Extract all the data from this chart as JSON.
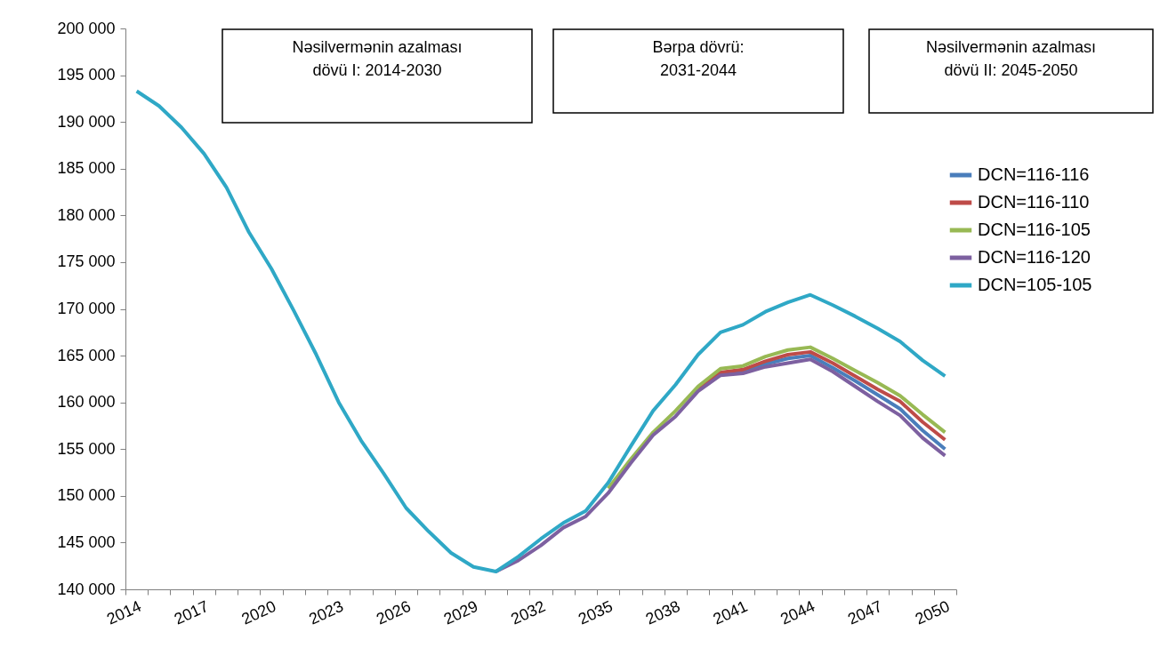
{
  "chart_data": {
    "type": "line",
    "categories": [
      "2014",
      null,
      null,
      "2017",
      null,
      null,
      "2020",
      null,
      null,
      "2023",
      null,
      null,
      "2026",
      null,
      null,
      "2029",
      null,
      null,
      "2032",
      null,
      null,
      "2035",
      null,
      null,
      "2038",
      null,
      null,
      "2041",
      null,
      null,
      "2044",
      null,
      null,
      "2047",
      null,
      null,
      "2050"
    ],
    "series": [
      {
        "name": "DCN=116-116",
        "color": "#4a7ebb",
        "values": [
          null,
          null,
          null,
          null,
          null,
          null,
          null,
          null,
          null,
          null,
          null,
          null,
          null,
          null,
          null,
          null,
          null,
          null,
          null,
          null,
          null,
          null,
          null,
          null,
          null,
          161400,
          163000,
          163300,
          164100,
          164700,
          165000,
          163700,
          162300,
          160800,
          159300,
          157000,
          155000
        ]
      },
      {
        "name": "DCN=116-110",
        "color": "#be4b48",
        "values": [
          null,
          null,
          null,
          null,
          null,
          null,
          null,
          null,
          null,
          null,
          null,
          null,
          null,
          null,
          null,
          null,
          null,
          null,
          null,
          null,
          null,
          null,
          null,
          null,
          null,
          161500,
          163200,
          163500,
          164400,
          165100,
          165400,
          164200,
          162800,
          161400,
          160100,
          157900,
          156000
        ]
      },
      {
        "name": "DCN=116-105",
        "color": "#98b954",
        "values": [
          null,
          null,
          null,
          null,
          null,
          null,
          null,
          null,
          null,
          null,
          null,
          null,
          null,
          null,
          null,
          null,
          null,
          null,
          null,
          null,
          null,
          150800,
          153900,
          156800,
          159100,
          161700,
          163600,
          163900,
          164900,
          165600,
          165900,
          164700,
          163400,
          162100,
          160700,
          158700,
          156800
        ]
      },
      {
        "name": "DCN=116-120",
        "color": "#7d60a0",
        "values": [
          null,
          null,
          null,
          null,
          null,
          null,
          null,
          null,
          null,
          null,
          null,
          null,
          null,
          null,
          null,
          null,
          141900,
          143100,
          144700,
          146600,
          147800,
          150300,
          153500,
          156500,
          158500,
          161200,
          162900,
          163100,
          163800,
          164200,
          164600,
          163300,
          161700,
          160100,
          158600,
          156200,
          154300
        ]
      },
      {
        "name": "DCN=105-105",
        "color": "#2fa8c6",
        "values": [
          193300,
          191700,
          189400,
          186600,
          183000,
          178200,
          174300,
          169800,
          165100,
          160000,
          155900,
          152400,
          148700,
          146200,
          143900,
          142400,
          141900,
          143500,
          145400,
          147100,
          148400,
          151400,
          155300,
          159100,
          161900,
          165100,
          167500,
          168300,
          169700,
          170700,
          171500,
          170400,
          169200,
          167900,
          166500,
          164500,
          162800
        ]
      }
    ],
    "ylim": [
      140000,
      200000
    ],
    "yticks": [
      {
        "value": 140000,
        "label": "140 000"
      },
      {
        "value": 145000,
        "label": "145 000"
      },
      {
        "value": 150000,
        "label": "150 000"
      },
      {
        "value": 155000,
        "label": "155 000"
      },
      {
        "value": 160000,
        "label": "160 000"
      },
      {
        "value": 165000,
        "label": "165 000"
      },
      {
        "value": 170000,
        "label": "170 000"
      },
      {
        "value": 175000,
        "label": "175 000"
      },
      {
        "value": 180000,
        "label": "180 000"
      },
      {
        "value": 185000,
        "label": "185 000"
      },
      {
        "value": 190000,
        "label": "190 000"
      },
      {
        "value": 195000,
        "label": "195 000"
      },
      {
        "value": 200000,
        "label": "200 000"
      }
    ],
    "annotations": [
      "Nəsilvermənin azalması\ndövü I: 2014-2030",
      "Bərpa dövrü:\n2031-2044",
      "Nəsilvermənin azalması\ndövü II: 2045-2050"
    ],
    "grid": false,
    "legend": "right",
    "marker": "none",
    "line_style": "solid"
  }
}
